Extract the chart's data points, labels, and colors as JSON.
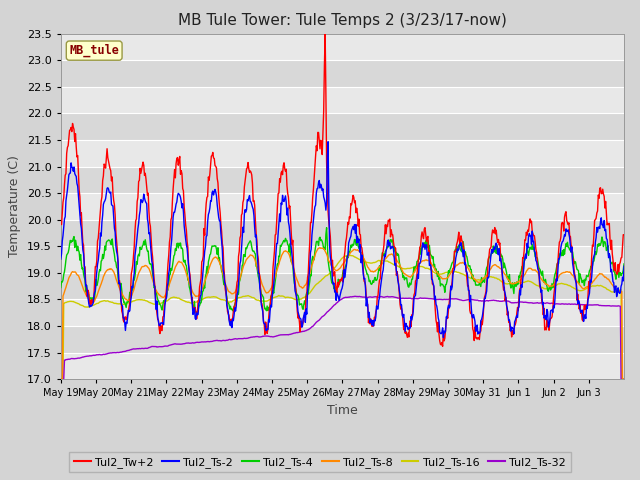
{
  "title": "MB Tule Tower: Tule Temps 2 (3/23/17-now)",
  "xlabel": "Time",
  "ylabel": "Temperature (C)",
  "ylim": [
    17.0,
    23.5
  ],
  "yticks": [
    17.0,
    17.5,
    18.0,
    18.5,
    19.0,
    19.5,
    20.0,
    20.5,
    21.0,
    21.5,
    22.0,
    22.5,
    23.0,
    23.5
  ],
  "x_labels": [
    "May 19",
    "May 20",
    "May 21",
    "May 22",
    "May 23",
    "May 24",
    "May 25",
    "May 26",
    "May 27",
    "May 28",
    "May 29",
    "May 30",
    "May 31",
    "Jun 1",
    "Jun 2",
    "Jun 3"
  ],
  "station_label": "MB_tule",
  "colors": {
    "Tul2_Tw+2": "#ff0000",
    "Tul2_Ts-2": "#0000ff",
    "Tul2_Ts-4": "#00cc00",
    "Tul2_Ts-8": "#ff8800",
    "Tul2_Ts-16": "#cccc00",
    "Tul2_Ts-32": "#9900cc"
  },
  "fig_bg": "#d4d4d4",
  "plot_bg": "#e0e0e0",
  "title_fontsize": 11,
  "label_fontsize": 9,
  "tick_fontsize": 8
}
